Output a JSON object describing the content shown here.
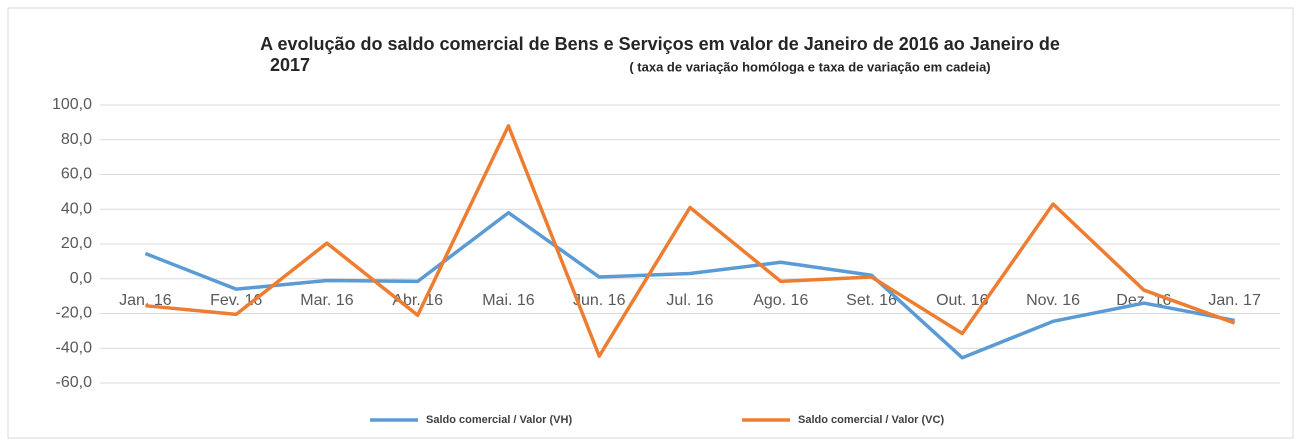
{
  "chart_data": {
    "type": "line",
    "title": [
      "A evolução do saldo comercial de Bens e Serviços em valor de Janeiro de 2016 ao Janeiro de",
      "2017"
    ],
    "subtitle": "( taxa de variação homóloga e taxa de variação em cadeia)",
    "categories": [
      "Jan. 16",
      "Fev. 16",
      "Mar. 16",
      "Abr. 16",
      "Mai. 16",
      "Jun. 16",
      "Jul. 16",
      "Ago. 16",
      "Set. 16",
      "Out. 16",
      "Nov. 16",
      "Dez. 16",
      "Jan. 17"
    ],
    "series": [
      {
        "name": "Saldo comercial / Valor (VH)",
        "color": "#5b9bd5",
        "values": [
          14.5,
          -6,
          -1,
          -1.5,
          38,
          1,
          3,
          9.5,
          2,
          -45.5,
          -24.5,
          -14,
          -24
        ]
      },
      {
        "name": "Saldo comercial / Valor (VC)",
        "color": "#ed7d31",
        "values": [
          -15.5,
          -20.5,
          20.5,
          -21,
          88,
          -44.5,
          41,
          -1.5,
          1,
          -31.5,
          43,
          -6.5,
          -25.5
        ]
      }
    ],
    "ylim": [
      -60,
      100
    ],
    "yticks": [
      {
        "value": -60,
        "label": "-60,0"
      },
      {
        "value": -40,
        "label": "-40,0"
      },
      {
        "value": -20,
        "label": "-20,0"
      },
      {
        "value": 0,
        "label": "0,0"
      },
      {
        "value": 20,
        "label": "20,0"
      },
      {
        "value": 40,
        "label": "40,0"
      },
      {
        "value": 60,
        "label": "60,0"
      },
      {
        "value": 80,
        "label": "80,0"
      },
      {
        "value": 100,
        "label": "100,0"
      }
    ],
    "grid": true,
    "legend": "bottom"
  }
}
